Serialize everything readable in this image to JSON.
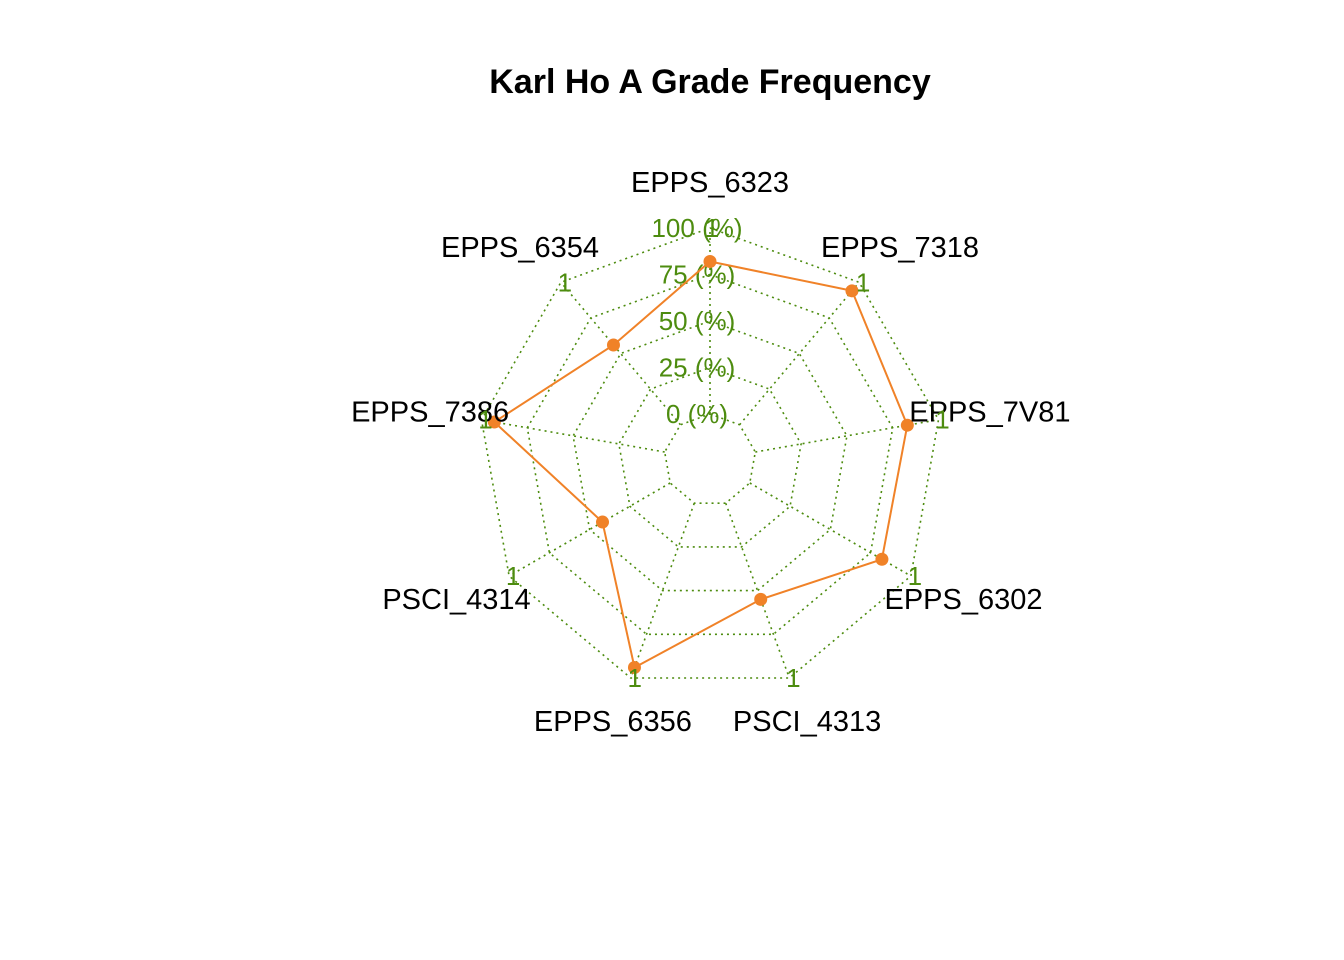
{
  "chart_data": {
    "type": "radar",
    "title": "Karl Ho A Grade Frequency",
    "axes": [
      "EPPS_6323",
      "EPPS_7318",
      "EPPS_7V81",
      "EPPS_6302",
      "PSCI_4313",
      "EPPS_6356",
      "PSCI_4314",
      "EPPS_7386",
      "EPPS_6354"
    ],
    "axis_max_labels": [
      "1",
      "1",
      "1",
      "1",
      "1",
      "1",
      "1",
      "1",
      "1"
    ],
    "ring_labels": [
      "0 (%)",
      "25 (%)",
      "50 (%)",
      "75 (%)",
      "100 (%)"
    ],
    "range": [
      0,
      1
    ],
    "grid": true,
    "series": [
      {
        "values": [
          0.82,
          0.94,
          0.83,
          0.82,
          0.55,
          0.94,
          0.42,
          0.93,
          0.56
        ]
      }
    ],
    "colors": {
      "grid": "#4d8c0f",
      "series": "#f08228"
    }
  }
}
